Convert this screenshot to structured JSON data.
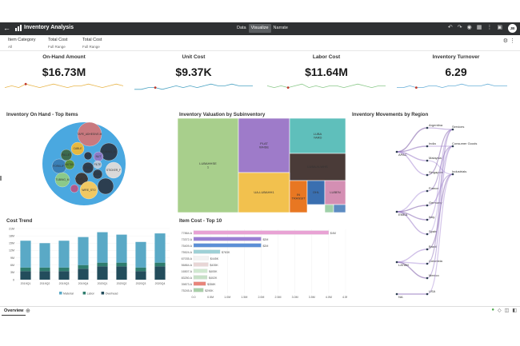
{
  "app": {
    "title": "Inventory Analysis",
    "modes": [
      "Data",
      "Visualize",
      "Narrate"
    ],
    "active_mode": "Visualize",
    "avatar_initials": "JB"
  },
  "filters": [
    {
      "label": "Item Category",
      "value": "All"
    },
    {
      "label": "Total Cost",
      "value": "Full Range"
    },
    {
      "label": "Total Cost",
      "value": "Full Range"
    }
  ],
  "kpis": [
    {
      "label": "On-Hand Amount",
      "value": "$16.73M",
      "color": "#e8b64c",
      "trend": [
        5,
        6,
        5,
        7,
        6,
        5,
        6,
        7,
        6,
        5,
        6,
        6,
        7,
        6,
        5,
        6,
        7,
        6
      ]
    },
    {
      "label": "Unit Cost",
      "value": "$9.37K",
      "color": "#4ba3c3",
      "trend": [
        4,
        4,
        5,
        5,
        4,
        5,
        6,
        5,
        6,
        5,
        6,
        7,
        6,
        6,
        7,
        6,
        6,
        6
      ]
    },
    {
      "label": "Labor Cost",
      "value": "$11.64M",
      "color": "#8bc98a",
      "trend": [
        6,
        5,
        6,
        5,
        6,
        7,
        5,
        6,
        5,
        6,
        6,
        5,
        6,
        7,
        6,
        5,
        6,
        6
      ]
    },
    {
      "label": "Inventory Turnover",
      "value": "6.29",
      "color": "#6ab0d8",
      "trend": [
        5,
        5,
        6,
        5,
        5,
        6,
        6,
        5,
        6,
        6,
        7,
        6,
        6,
        6,
        7,
        6,
        6,
        6
      ]
    }
  ],
  "sections": {
    "top_items": "Inventory On Hand - Top Items",
    "valuation": "Inventory Valuation by Subinventory",
    "movements": "Inventory Movements by Region",
    "cost_trend": "Cost Trend",
    "item_cost": "Item Cost - Top 10"
  },
  "bubbles": [
    {
      "label": "TAPE_ADHESIVE-M",
      "color": "#c9797f"
    },
    {
      "label": "CABLE",
      "color": "#e6b840"
    },
    {
      "label": "TUBING_M",
      "color": "#2c3e50"
    },
    {
      "label": "PALLET",
      "color": "#3d6b4f"
    },
    {
      "label": "FILTE",
      "color": "#2c3e50"
    },
    {
      "label": "NUT",
      "color": "#8a7bc7"
    },
    {
      "label": "FORKLIFT",
      "color": "#3a7fb5"
    },
    {
      "label": "MUTAIL",
      "color": "#5b8f3a"
    },
    {
      "label": "TOOL",
      "color": "#2c3e50"
    },
    {
      "label": "FILTE",
      "color": "#b6c7d8"
    },
    {
      "label": "BLOCK",
      "color": "#2c3e50"
    },
    {
      "label": "STICKER_F",
      "color": "#d9d9d9"
    },
    {
      "label": "VALVE_PR",
      "color": "#3b3b3b"
    },
    {
      "label": "TUBING_M",
      "color": "#8bc98a"
    },
    {
      "label": "WIRE_STO",
      "color": "#f0c862"
    },
    {
      "label": "",
      "color": "#2c3e50"
    },
    {
      "label": "",
      "color": "#b05a8a"
    }
  ],
  "treemap": [
    {
      "label": "LUBAHHSE 1",
      "color": "#a8cf8c"
    },
    {
      "label": "PLAT WHSE",
      "color": "#9e7bc9"
    },
    {
      "label": "LUBA YARD",
      "color": "#5fbfbb"
    },
    {
      "label": "LUBA-N-WHS",
      "color": "#4a3b38"
    },
    {
      "label": "UA-LUBAHH1",
      "color": "#f2c14e"
    },
    {
      "label": "IN TRANSIT",
      "color": "#e87722"
    },
    {
      "label": "OHL",
      "color": "#3a6fb0"
    },
    {
      "label": "LUBEN",
      "color": "#d48fb3"
    },
    {
      "label": "",
      "color": "#9fd0a9"
    },
    {
      "label": "",
      "color": "#5d8cc2"
    }
  ],
  "sankey": {
    "regions": [
      "APAC",
      "EMEA",
      "LATAM",
      "NA"
    ],
    "countries": [
      "Argentina",
      "India",
      "Malaysia",
      "Singapore",
      "France",
      "Germany",
      "Italy",
      "Spain",
      "Brazil",
      "Colombia",
      "Mexico",
      "USA"
    ],
    "categories": [
      "Services",
      "Consumer Goods",
      "Industrials"
    ]
  },
  "chart_data": [
    {
      "type": "bar",
      "title": "Cost Trend",
      "categories": [
        "2019Q1",
        "2019Q2",
        "2019Q3",
        "2019Q4",
        "2020Q1",
        "2020Q2",
        "2020Q3",
        "2020Q4"
      ],
      "series": [
        {
          "name": "Material",
          "color": "#5aa9c6",
          "values": [
            11,
            10,
            11,
            11.5,
            12.5,
            11.5,
            10.5,
            12
          ]
        },
        {
          "name": "Labor",
          "color": "#2f7d6e",
          "values": [
            1.5,
            1.5,
            1.5,
            1.5,
            1.5,
            1.5,
            1.5,
            1.5
          ]
        },
        {
          "name": "Overhead",
          "color": "#234d5c",
          "values": [
            3.5,
            3.5,
            3.5,
            4.5,
            5.5,
            5.5,
            3.5,
            5.5
          ]
        }
      ],
      "yticks": [
        "0",
        "3M",
        "6M",
        "9M",
        "12M",
        "15M",
        "18M",
        "21M"
      ],
      "ylim": [
        0,
        21
      ]
    },
    {
      "type": "bar",
      "orientation": "horizontal",
      "title": "Item Cost - Top 10",
      "categories": [
        "77864.A",
        "73372.A",
        "75409.A",
        "75524.A",
        "67035.A",
        "56864.A",
        "16507.A",
        "83250.A",
        "39873.A",
        "75245.A"
      ],
      "values": [
        4,
        2,
        2,
        0.783,
        0.445,
        0.435,
        0.405,
        0.402,
        0.358,
        0.29
      ],
      "labels": [
        "$4M",
        "$2M",
        "$2M",
        "$783K",
        "$445K",
        "$435K",
        "$405K",
        "$402K",
        "$358K",
        "$290K"
      ],
      "colors": [
        "#e8a2d4",
        "#9a7fd4",
        "#5b8fd6",
        "#9ed0d6",
        "#f2f2f2",
        "#e8d6d6",
        "#d0e8d0",
        "#c7e0c7",
        "#e8857a",
        "#a8cfa8"
      ],
      "xticks": [
        "0.0",
        "0.5M",
        "1.0M",
        "1.5M",
        "2.0M",
        "2.5M",
        "3.0M",
        "3.5M",
        "4.0M",
        "4.5M"
      ],
      "xlim": [
        0,
        4.5
      ]
    }
  ],
  "bottom": {
    "tab": "Overview"
  }
}
